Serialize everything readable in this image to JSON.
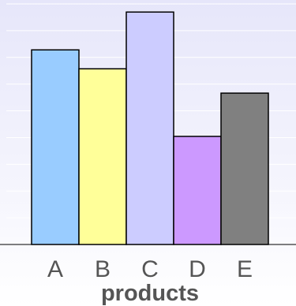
{
  "chart_data": {
    "type": "bar",
    "title": "",
    "xlabel": "products",
    "ylabel": "",
    "categories": [
      "A",
      "B",
      "C",
      "D",
      "E"
    ],
    "values": [
      7.2,
      6.5,
      8.6,
      4.0,
      5.6
    ],
    "ylim": [
      0,
      8.9
    ],
    "grid": true,
    "legend": "none",
    "colors": [
      "#99ccff",
      "#ffff99",
      "#ccccff",
      "#cc99ff",
      "#808080"
    ]
  }
}
